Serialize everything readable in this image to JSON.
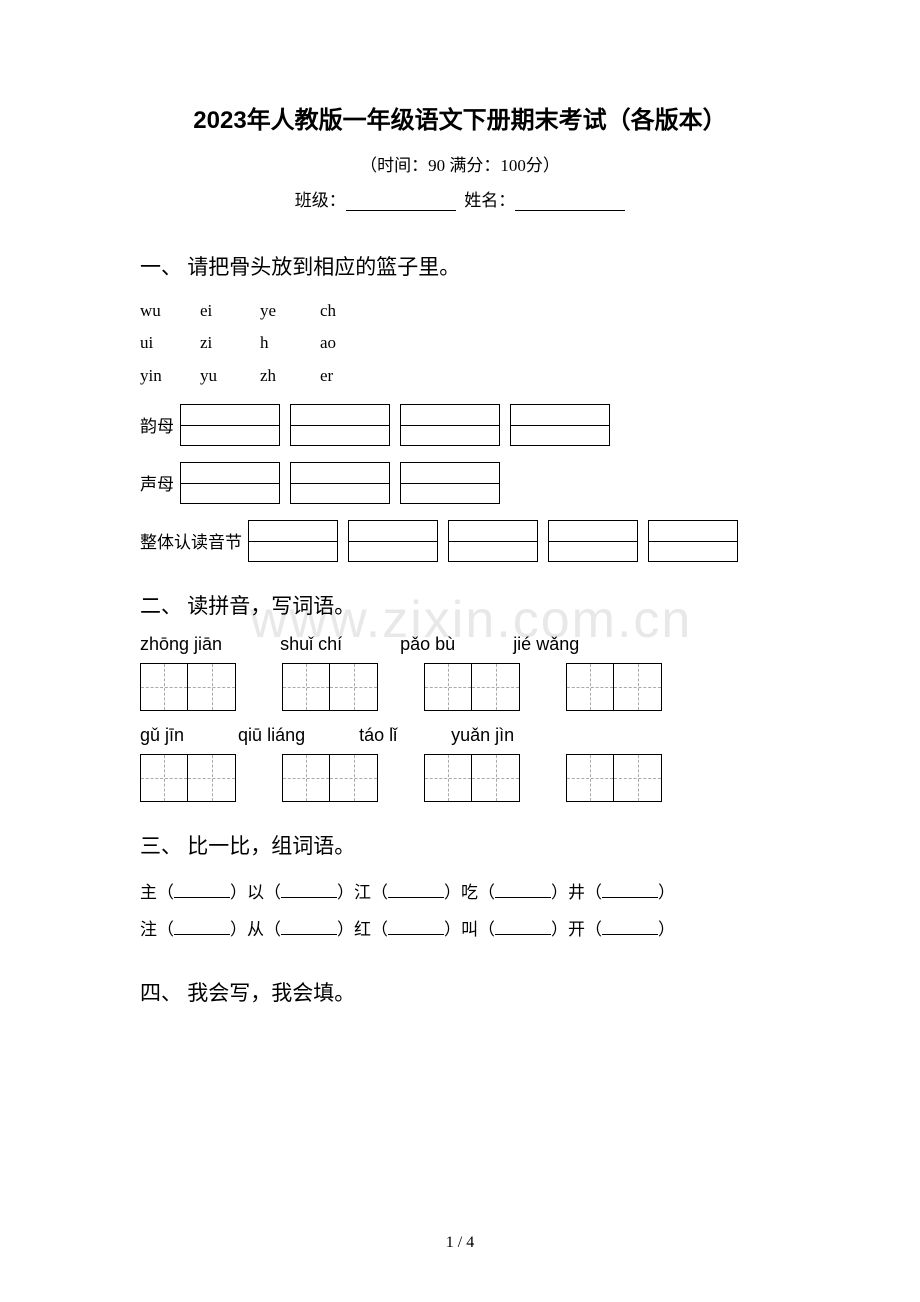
{
  "title": "2023年人教版一年级语文下册期末考试（各版本）",
  "subtitle": "（时间：90   满分：100分）",
  "class_label": "班级：",
  "name_label": "姓名：",
  "watermark": "www.zixin.com.cn",
  "page_num": "1 / 4",
  "section1": {
    "heading": "一、 请把骨头放到相应的篮子里。",
    "row1": [
      "wu",
      "ei",
      "ye",
      "ch"
    ],
    "row2": [
      "ui",
      "zi",
      "h",
      "ao"
    ],
    "row3": [
      "yin",
      "yu",
      "zh",
      "er"
    ],
    "label_yunmu": "韵母",
    "label_shengmu": "声母",
    "label_zhengti": "整体认读音节"
  },
  "section2": {
    "heading": "二、 读拼音，写词语。",
    "words_row1": [
      "zhōng jiān",
      "shuǐ chí",
      "pǎo bù",
      "jié wǎng"
    ],
    "words_row2": [
      "gǔ  jīn",
      "qiū liáng",
      "táo  lǐ",
      "yuǎn jìn"
    ]
  },
  "section3": {
    "heading": "三、 比一比，组词语。",
    "row1_chars": [
      "主",
      "以",
      "江",
      "吃",
      "井"
    ],
    "row2_chars": [
      "注",
      "从",
      "红",
      "叫",
      "开"
    ]
  },
  "section4": {
    "heading": "四、 我会写，我会填。"
  }
}
